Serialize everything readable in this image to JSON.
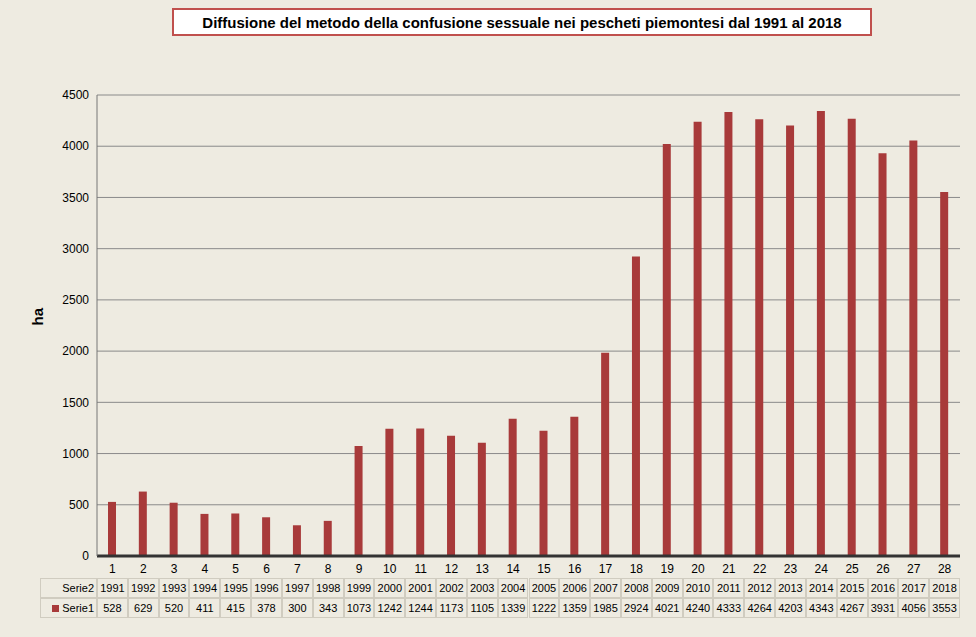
{
  "chart_data": {
    "type": "bar",
    "title": "Diffusione del metodo della confusione sessuale nei pescheti piemontesi dal 1991 al 2018",
    "y_label": "ha",
    "categories": [
      "1",
      "2",
      "3",
      "4",
      "5",
      "6",
      "7",
      "8",
      "9",
      "10",
      "11",
      "12",
      "13",
      "14",
      "15",
      "16",
      "17",
      "18",
      "19",
      "20",
      "21",
      "22",
      "23",
      "24",
      "25",
      "26",
      "27",
      "28"
    ],
    "series": [
      {
        "name": "Serie1",
        "color": "#a83a3a",
        "values": [
          528,
          629,
          520,
          411,
          415,
          378,
          300,
          343,
          1073,
          1242,
          1244,
          1173,
          1105,
          1339,
          1222,
          1359,
          1985,
          2924,
          4021,
          4240,
          4333,
          4264,
          4203,
          4343,
          4267,
          3931,
          4056,
          3553
        ]
      }
    ],
    "data_table": {
      "rows": [
        {
          "label": "Serie2",
          "cells": [
            1991,
            1992,
            1993,
            1994,
            1995,
            1996,
            1997,
            1998,
            1999,
            2000,
            2001,
            2002,
            2003,
            2004,
            2005,
            2006,
            2007,
            2008,
            2009,
            2010,
            2011,
            2012,
            2013,
            2014,
            2015,
            2016,
            2017,
            2018
          ]
        }
      ]
    },
    "ylim": [
      0,
      4500
    ],
    "yticks": [
      0,
      500,
      1000,
      1500,
      2000,
      2500,
      3000,
      3500,
      4000,
      4500
    ],
    "grid": true
  }
}
